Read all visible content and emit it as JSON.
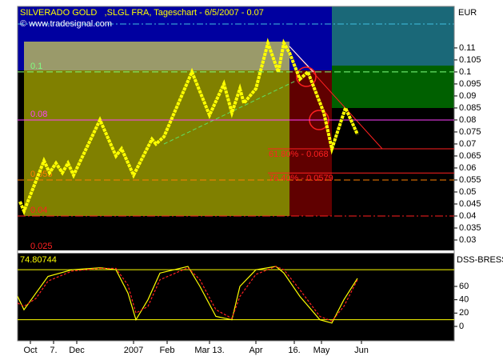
{
  "chart_data": [
    {
      "type": "line",
      "title": "SILVERADO GOLD   ,SLGL FRA, Tageschart - 6/5/2007 - 0.07",
      "subtitle": "© www.tradesignal.com",
      "y_label": "EUR",
      "x": [
        3,
        8,
        33,
        40,
        48,
        56,
        63,
        70,
        103,
        123,
        130,
        145,
        168,
        173,
        183,
        218,
        240,
        258,
        268,
        278,
        283,
        298,
        313,
        326,
        333,
        340,
        353,
        363,
        383,
        393,
        410,
        425
      ],
      "series": [
        {
          "color": "#ffff00",
          "values": [
            0.046,
            0.042,
            0.063,
            0.058,
            0.062,
            0.058,
            0.062,
            0.057,
            0.08,
            0.065,
            0.068,
            0.057,
            0.072,
            0.07,
            0.073,
            0.1,
            0.082,
            0.095,
            0.083,
            0.093,
            0.087,
            0.093,
            0.112,
            0.1,
            0.112,
            0.108,
            0.097,
            0.1,
            0.083,
            0.068,
            0.085,
            0.074
          ]
        }
      ],
      "xlim": [
        0,
        546
      ],
      "xticks": [
        {
          "value": 16,
          "label": "Oct"
        },
        {
          "value": 45,
          "label": "7."
        },
        {
          "value": 74,
          "label": "Dec"
        },
        {
          "value": 145,
          "label": "2007"
        },
        {
          "value": 187,
          "label": "Feb"
        },
        {
          "value": 240,
          "label": "Mar 13."
        },
        {
          "value": 298,
          "label": "Apr"
        },
        {
          "value": 346,
          "label": "16."
        },
        {
          "value": 380,
          "label": "May"
        },
        {
          "value": 430,
          "label": "Jun"
        }
      ],
      "ylim": [
        0.026,
        0.1273
      ],
      "yticks": [
        0.03,
        0.035,
        0.04,
        0.045,
        0.05,
        0.055,
        0.06,
        0.065,
        0.07,
        0.075,
        0.08,
        0.085,
        0.09,
        0.095,
        0.1,
        0.105,
        0.11
      ],
      "levels": [
        {
          "value": 0.1,
          "label": "0.1",
          "color": "#80ff80",
          "style": "dashed"
        },
        {
          "value": 0.08,
          "label": "0.08",
          "color": "#ff40ff",
          "style": "solid"
        },
        {
          "value": 0.055,
          "label": "0.055",
          "color": "#ff8000",
          "style": "dashed"
        },
        {
          "value": 0.04,
          "label": "0.04",
          "color": "#ff2020",
          "style": "dashdot"
        },
        {
          "value": 0.025,
          "label": "0.025",
          "color": "#ff2020",
          "style": "none"
        }
      ],
      "retracements": [
        {
          "value": 0.068,
          "label": "61.80% - 0.068",
          "color": "#ff2020"
        },
        {
          "value": 0.0579,
          "label": "76.40% - 0.0579",
          "color": "#ff2020"
        }
      ]
    },
    {
      "type": "line",
      "title": "DSS-BRESSI",
      "last_value": 74.80744,
      "x": [
        0,
        8,
        23,
        38,
        68,
        103,
        123,
        138,
        148,
        163,
        178,
        213,
        228,
        248,
        268,
        278,
        298,
        323,
        333,
        353,
        378,
        393,
        408,
        425
      ],
      "series": [
        {
          "color": "#ffff00",
          "dash": false,
          "values": [
            45,
            25,
            50,
            75,
            85,
            88,
            85,
            50,
            10,
            40,
            80,
            90,
            60,
            15,
            10,
            60,
            85,
            90,
            80,
            45,
            10,
            5,
            40,
            72
          ]
        },
        {
          "color": "#ff2020",
          "dash": true,
          "values": [
            35,
            30,
            42,
            68,
            83,
            87,
            87,
            62,
            20,
            30,
            70,
            88,
            70,
            25,
            12,
            45,
            78,
            90,
            85,
            55,
            15,
            8,
            30,
            70
          ]
        }
      ],
      "xlim": [
        0,
        546
      ],
      "ylim": [
        -20.4,
        108
      ],
      "yticks": [
        0,
        20,
        40,
        60
      ],
      "levels": [
        10,
        85
      ]
    }
  ]
}
